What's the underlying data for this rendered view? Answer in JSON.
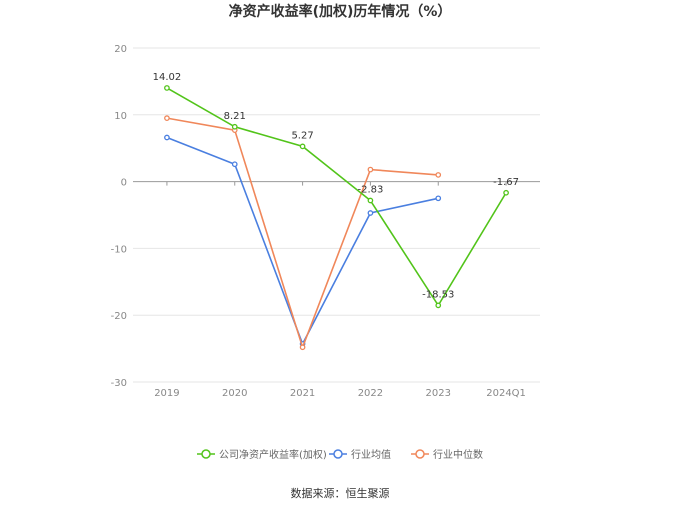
{
  "chart_data": {
    "type": "line",
    "title": "净资产收益率(加权)历年情况（%）",
    "categories": [
      "2019",
      "2020",
      "2021",
      "2022",
      "2023",
      "2024Q1"
    ],
    "ylim": [
      -30,
      20
    ],
    "yticks": [
      20,
      10,
      0,
      -10,
      -20,
      -30
    ],
    "grid": true,
    "legend_position": "bottom",
    "series": [
      {
        "name": "公司净资产收益率(加权)",
        "color": "#52c41a",
        "values": [
          14.02,
          8.21,
          5.27,
          -2.83,
          -18.53,
          -1.67
        ],
        "labels": [
          "14.02",
          "8.21",
          "5.27",
          "-2.83",
          "-18.53",
          "-1.67"
        ]
      },
      {
        "name": "行业均值",
        "color": "#4a7fe0",
        "values": [
          6.6,
          2.6,
          -24.3,
          -4.7,
          -2.5,
          null
        ]
      },
      {
        "name": "行业中位数",
        "color": "#f0875a",
        "values": [
          9.5,
          7.7,
          -24.8,
          1.8,
          1.0,
          null
        ]
      }
    ]
  },
  "source_text": "数据来源：恒生聚源"
}
